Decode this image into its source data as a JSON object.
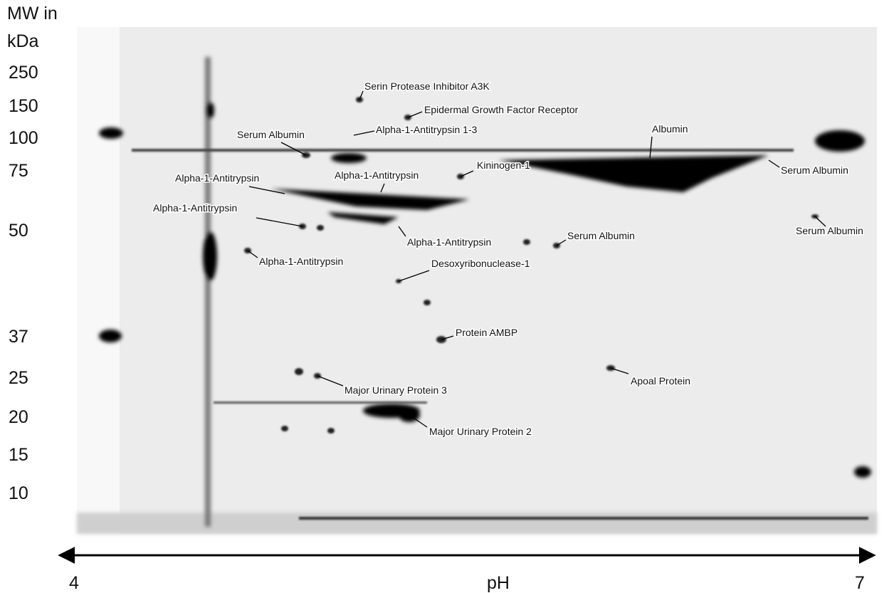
{
  "axis": {
    "mw_title_line1": "MW in",
    "mw_title_line2": "kDa",
    "mw_markers": [
      250,
      150,
      100,
      75,
      50,
      37,
      25,
      20,
      15,
      10
    ],
    "ph_min": "4",
    "ph_label": "pH",
    "ph_max": "7"
  },
  "annotations": [
    {
      "text": "Serin Protease Inhibitor A3K"
    },
    {
      "text": "Epidermal Growth Factor Receptor"
    },
    {
      "text": "Alpha-1-Antitrypsin 1-3"
    },
    {
      "text": "Serum Albumin"
    },
    {
      "text": "Albumin"
    },
    {
      "text": "Kininogen-1"
    },
    {
      "text": "Serum Albumin"
    },
    {
      "text": "Alpha-1-Antitrypsin"
    },
    {
      "text": "Alpha-1-Antitrypsin"
    },
    {
      "text": "Alpha-1-Antitrypsin"
    },
    {
      "text": "Serum Albumin"
    },
    {
      "text": "Alpha-1-Antitrypsin"
    },
    {
      "text": "Serum Albumin"
    },
    {
      "text": "Alpha-1-Antitrypsin"
    },
    {
      "text": "Desoxyribonuclease-1"
    },
    {
      "text": "Protein AMBP"
    },
    {
      "text": "Apoal Protein"
    },
    {
      "text": "Major Urinary Protein 3"
    },
    {
      "text": "Major Urinary Protein 2"
    }
  ]
}
